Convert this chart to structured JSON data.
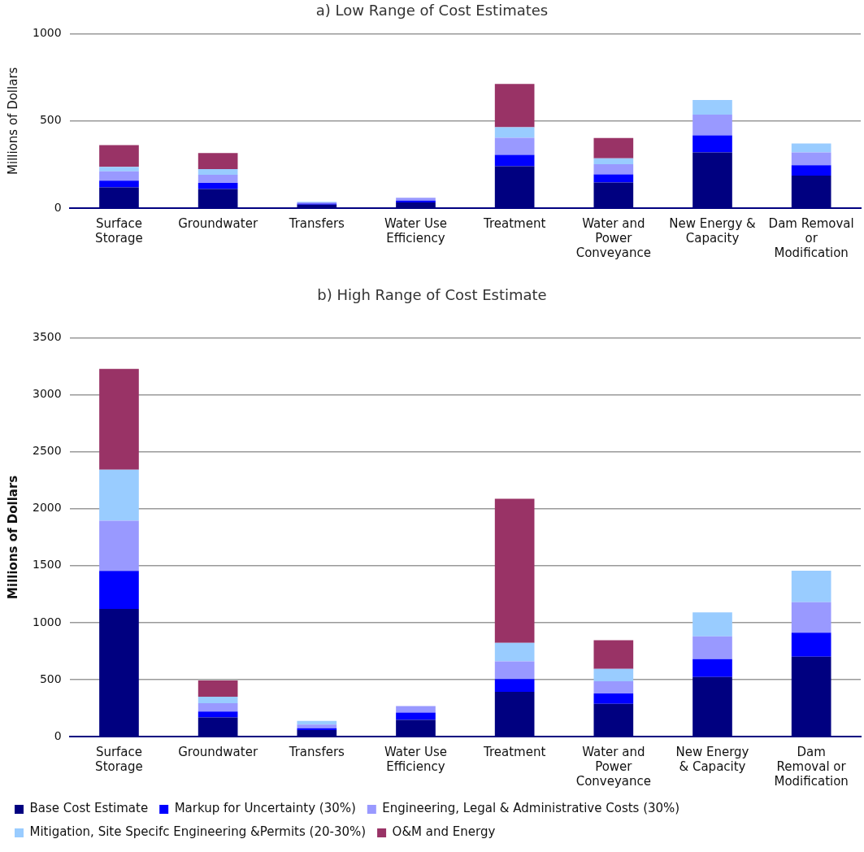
{
  "chart_data": [
    {
      "type": "bar",
      "title": "a) Low Range of Cost Estimates",
      "ylabel": "Millions of Dollars",
      "categories": [
        "Surface Storage",
        "Groundwater",
        "Transfers",
        "Water Use Efficiency",
        "Treatment",
        "Water and Power Conveyance",
        "New Energy & Capacity",
        "Dam Removal or Modification"
      ],
      "stacked": true,
      "ylim": [
        0,
        1000
      ],
      "yticks": [
        0,
        500,
        1000
      ],
      "grid": "y",
      "legend": false,
      "series": [
        {
          "color": "#000080",
          "values": [
            119,
            110,
            20,
            33,
            240,
            147,
            319,
            187
          ]
        },
        {
          "color": "#0000ff",
          "values": [
            39,
            35,
            6,
            10,
            65,
            46,
            98,
            59
          ]
        },
        {
          "color": "#9999ff",
          "values": [
            53,
            46,
            7,
            16,
            99,
            59,
            119,
            73
          ]
        },
        {
          "color": "#99ccff",
          "values": [
            26,
            33,
            3,
            null,
            60,
            34,
            84,
            52
          ]
        },
        {
          "color": "#993366",
          "values": [
            125,
            92,
            null,
            null,
            248,
            116,
            null,
            null
          ]
        }
      ]
    },
    {
      "type": "bar",
      "title": "b) High Range of Cost Estimate",
      "ylabel": "Millions of Dollars",
      "categories": [
        "Surface Storage",
        "Groundwater",
        "Transfers",
        "Water Use Efficiency",
        "Treatment",
        "Water and Power Conveyance",
        "New Energy & Capacity",
        "Dam Removal or Modification"
      ],
      "stacked": true,
      "ylim": [
        0,
        3500
      ],
      "yticks": [
        0,
        500,
        1000,
        1500,
        2000,
        2500,
        3000,
        3500
      ],
      "grid": "y",
      "legend": "bottom",
      "series": [
        {
          "name": "Base Cost Estimate",
          "color": "#000080",
          "values": [
            1120,
            168,
            57,
            146,
            392,
            287,
            522,
            701
          ]
        },
        {
          "name": "Markup for Uncertainty (30%)",
          "color": "#0000ff",
          "values": [
            335,
            51,
            16,
            65,
            113,
            92,
            157,
            211
          ]
        },
        {
          "name": "Engineering, Legal & Administrative Costs (30%)",
          "color": "#9999ff",
          "values": [
            440,
            73,
            33,
            57,
            155,
            106,
            200,
            268
          ]
        },
        {
          "name": "Mitigation, Site Specifc Engineering &Permits (20-30%)",
          "color": "#99ccff",
          "values": [
            447,
            57,
            32,
            null,
            163,
            110,
            212,
            276
          ]
        },
        {
          "name": "O&M and Energy",
          "color": "#993366",
          "values": [
            885,
            143,
            null,
            null,
            1265,
            250,
            null,
            null
          ]
        }
      ]
    }
  ]
}
